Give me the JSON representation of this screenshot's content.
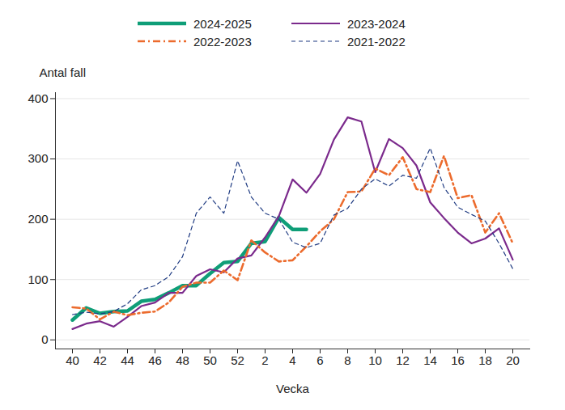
{
  "chart_data": {
    "type": "line",
    "x_label": "Vecka",
    "y_label": "Antal fall",
    "categories": [
      "40",
      null,
      "42",
      null,
      "44",
      null,
      "46",
      null,
      "48",
      null,
      "50",
      null,
      "52",
      null,
      "2",
      null,
      "4",
      null,
      "6",
      null,
      "8",
      null,
      "10",
      null,
      "12",
      null,
      "14",
      null,
      "16",
      null,
      "18",
      null,
      "20"
    ],
    "series": [
      {
        "name": "2024-2025",
        "color": "#0f9e78",
        "line_style": "solid",
        "values": [
          33,
          53,
          44,
          47,
          48,
          64,
          67,
          78,
          90,
          90,
          110,
          128,
          130,
          160,
          163,
          203,
          183,
          183,
          null,
          null,
          null,
          null,
          null,
          null,
          null,
          null,
          null,
          null,
          null,
          null,
          null,
          null,
          null
        ]
      },
      {
        "name": "2023-2024",
        "color": "#7b2a8c",
        "line_style": "solid",
        "values": [
          18,
          27,
          31,
          22,
          38,
          56,
          62,
          78,
          78,
          106,
          117,
          112,
          135,
          140,
          170,
          205,
          266,
          244,
          275,
          332,
          369,
          362,
          278,
          333,
          318,
          289,
          228,
          202,
          178,
          160,
          168,
          185,
          133
        ]
      },
      {
        "name": "2022-2023",
        "color": "#ec6b2d",
        "line_style": "dashdot",
        "values": [
          54,
          52,
          34,
          47,
          41,
          45,
          47,
          62,
          88,
          95,
          95,
          115,
          99,
          165,
          145,
          130,
          132,
          155,
          180,
          200,
          245,
          246,
          284,
          273,
          303,
          250,
          245,
          305,
          235,
          240,
          178,
          210,
          160
        ]
      },
      {
        "name": "2021-2022",
        "color": "#1f3b82",
        "line_style": "dashed",
        "values": [
          42,
          46,
          43,
          47,
          60,
          83,
          90,
          105,
          138,
          210,
          237,
          210,
          297,
          237,
          210,
          200,
          162,
          153,
          160,
          207,
          218,
          250,
          267,
          255,
          273,
          268,
          318,
          253,
          220,
          208,
          197,
          160,
          118
        ]
      }
    ],
    "ylim": [
      -15,
      410
    ],
    "yticks": [
      0,
      100,
      200,
      300,
      400
    ],
    "grid": true,
    "legend": "top"
  }
}
